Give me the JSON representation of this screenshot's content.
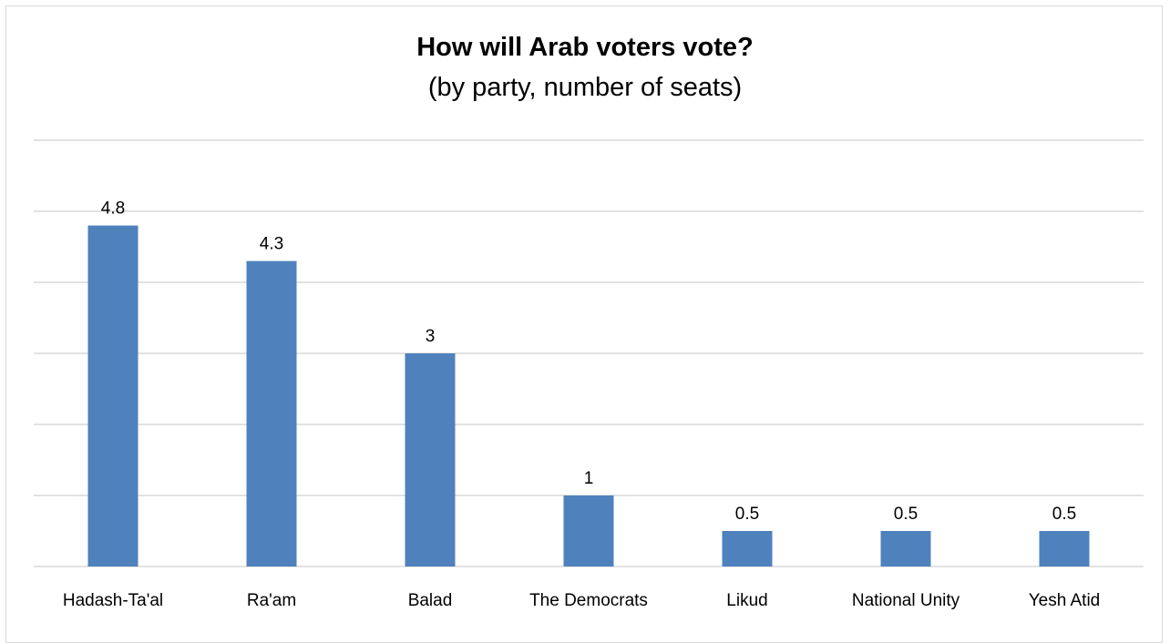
{
  "chart_data": {
    "type": "bar",
    "title": "How will Arab voters vote?",
    "subtitle": "(by party, number of seats)",
    "categories": [
      "Hadash-Ta'al",
      "Ra'am",
      "Balad",
      "The Democrats",
      "Likud",
      "National Unity",
      "Yesh Atid"
    ],
    "values": [
      4.8,
      4.3,
      3,
      1,
      0.5,
      0.5,
      0.5
    ],
    "data_labels": [
      "4.8",
      "4.3",
      "3",
      "1",
      "0.5",
      "0.5",
      "0.5"
    ],
    "ylim": [
      0,
      6
    ],
    "ytick_step": 1,
    "grid": true,
    "legend": "none",
    "bar_color": "#4f81bd",
    "grid_color": "#d9d9d9"
  }
}
